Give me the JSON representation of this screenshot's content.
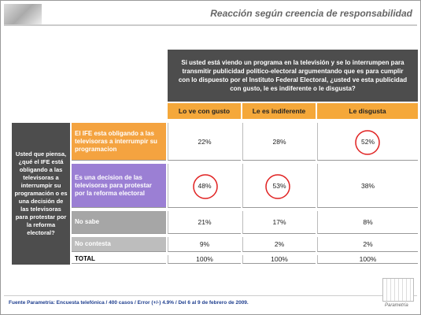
{
  "title": "Reacción según creencia de responsabilidad",
  "table": {
    "question": "Si usted está viendo un programa en la televisión y se lo interrumpen para transmitir publicidad político-electoral argumentando que es para cumplir con lo dispuesto por el Instituto Federal Electoral,  ¿usted  ve esta publicidad con gusto, le es indiferente o le disgusta?",
    "columns": [
      "Lo ve con gusto",
      "Le es indiferente",
      "Le disgusta"
    ],
    "row_question": "Usted que piensa, ¿qué el IFE está obligando a las televisoras a interrumpir su programación o es una decisión de las televisoras para protestar por la reforma electoral?",
    "rows": [
      {
        "label": "El IFE esta obligando a las televisoras a interrumpir su programacion",
        "values": [
          "22%",
          "28%",
          "52%"
        ]
      },
      {
        "label": "Es una decision de las televisoras para protestar por la reforma electoral",
        "values": [
          "48%",
          "53%",
          "38%"
        ]
      },
      {
        "label": "No sabe",
        "values": [
          "21%",
          "17%",
          "8%"
        ]
      },
      {
        "label": "No contesta",
        "values": [
          "9%",
          "2%",
          "2%"
        ]
      },
      {
        "label": "TOTAL",
        "values": [
          "100%",
          "100%",
          "100%"
        ]
      }
    ]
  },
  "footer": "Fuente Parametría: Encuesta telefónica / 400 casos / Error (+/-) 4.9% / Del 6 al 9 de febrero de 2009.",
  "logo": "Parametría"
}
